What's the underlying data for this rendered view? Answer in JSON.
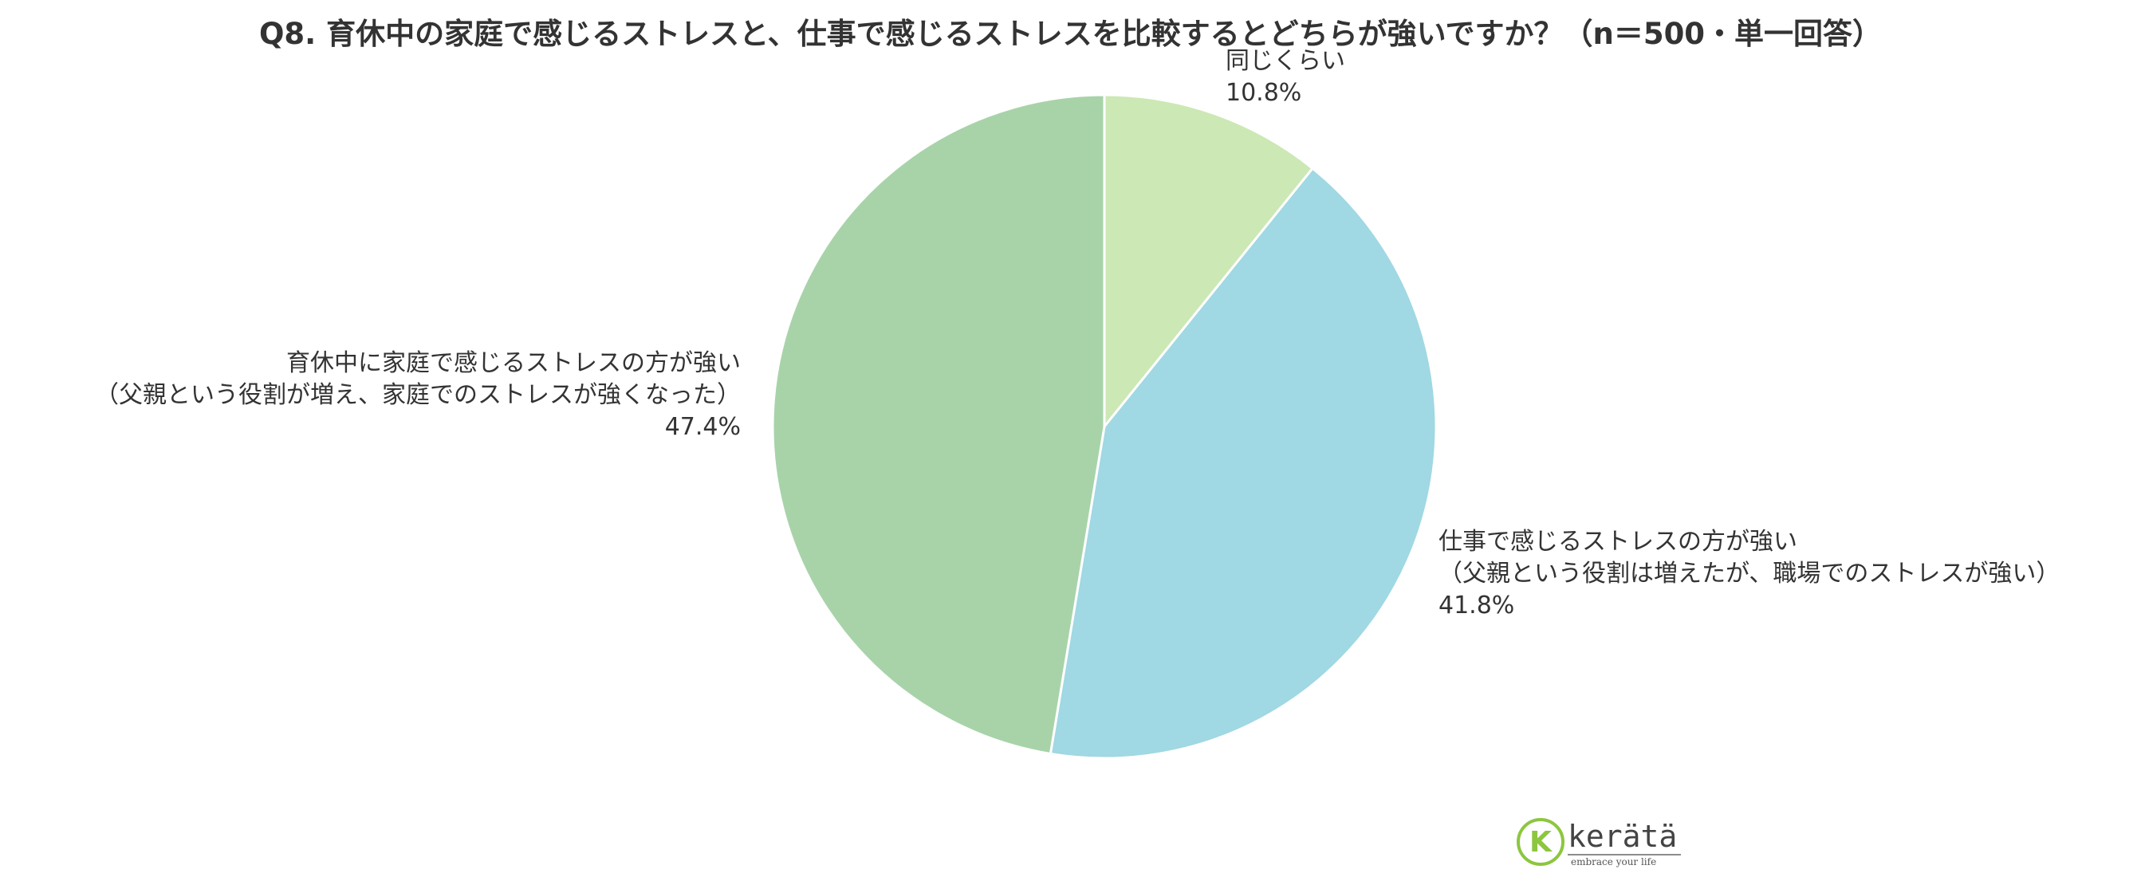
{
  "chart_data": {
    "type": "pie",
    "title": "Q8. 育休中の家庭で感じるストレスと、仕事で感じるストレスを比較するとどちらが強いですか？（n＝500・単一回答）",
    "categories": [
      "同じくらい",
      "仕事で感じるストレスの方が強い\n（父親という役割は増えたが、職場でのストレスが強い）",
      "育休中に家庭で感じるストレスの方が強い\n（父親という役割が増え、家庭でのストレスが強くなった）"
    ],
    "values": [
      10.8,
      41.8,
      47.4
    ],
    "value_labels": [
      "10.8%",
      "41.8%",
      "47.4%"
    ],
    "colors": [
      "#cce8b5",
      "#a0d8e3",
      "#a8d3a9"
    ]
  },
  "logo": {
    "name": "kerätä",
    "tagline": "embrace your life"
  }
}
